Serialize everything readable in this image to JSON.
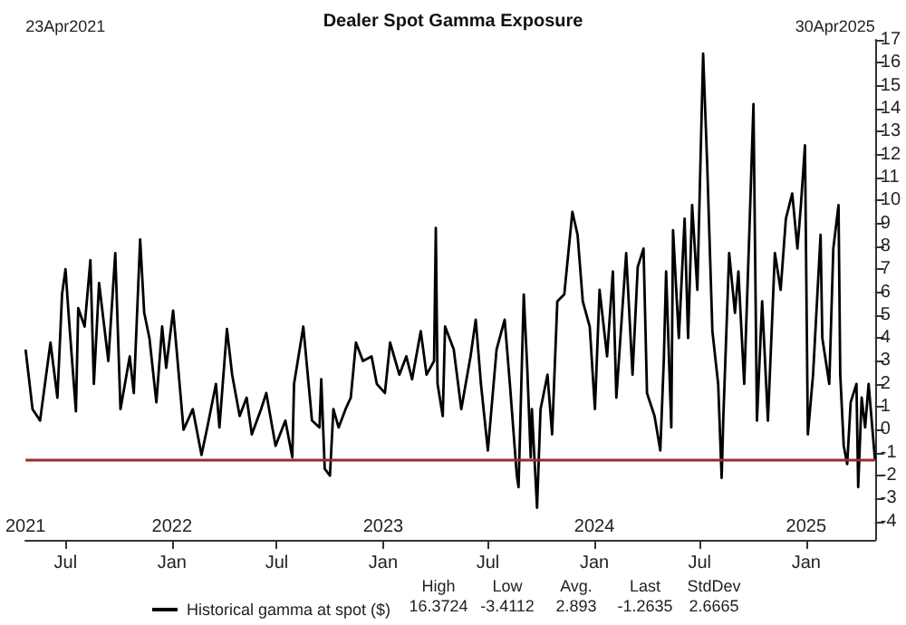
{
  "chart_data": {
    "type": "line",
    "title": "Dealer Spot Gamma Exposure",
    "x": [
      "2021-04-23",
      "2021-05-05",
      "2021-05-18",
      "2021-06-05",
      "2021-06-17",
      "2021-06-25",
      "2021-07-01",
      "2021-07-07",
      "2021-07-19",
      "2021-07-23",
      "2021-08-03",
      "2021-08-13",
      "2021-08-19",
      "2021-08-28",
      "2021-09-13",
      "2021-09-25",
      "2021-10-04",
      "2021-10-20",
      "2021-10-27",
      "2021-11-07",
      "2021-11-14",
      "2021-11-23",
      "2021-12-05",
      "2021-12-15",
      "2021-12-22",
      "2022-01-03",
      "2022-01-09",
      "2022-01-21",
      "2022-02-06",
      "2022-02-21",
      "2022-03-03",
      "2022-03-18",
      "2022-03-24",
      "2022-04-06",
      "2022-04-15",
      "2022-04-28",
      "2022-05-10",
      "2022-05-19",
      "2022-06-04",
      "2022-06-13",
      "2022-06-29",
      "2022-07-16",
      "2022-07-28",
      "2022-07-31",
      "2022-08-16",
      "2022-08-31",
      "2022-09-13",
      "2022-09-16",
      "2022-09-22",
      "2022-10-01",
      "2022-10-07",
      "2022-10-16",
      "2022-10-28",
      "2022-11-06",
      "2022-11-15",
      "2022-11-27",
      "2022-12-12",
      "2022-12-21",
      "2023-01-04",
      "2023-01-13",
      "2023-01-29",
      "2023-02-10",
      "2023-02-20",
      "2023-03-07",
      "2023-03-17",
      "2023-03-30",
      "2023-04-02",
      "2023-04-05",
      "2023-04-14",
      "2023-04-18",
      "2023-05-03",
      "2023-05-16",
      "2023-06-01",
      "2023-06-10",
      "2023-06-19",
      "2023-07-01",
      "2023-07-16",
      "2023-07-30",
      "2023-08-08",
      "2023-08-20",
      "2023-08-23",
      "2023-09-01",
      "2023-09-07",
      "2023-09-13",
      "2023-09-15",
      "2023-09-24",
      "2023-09-30",
      "2023-10-12",
      "2023-10-20",
      "2023-10-29",
      "2023-11-10",
      "2023-11-24",
      "2023-12-03",
      "2023-12-12",
      "2023-12-24",
      "2024-01-02",
      "2024-01-10",
      "2024-01-23",
      "2024-02-02",
      "2024-02-08",
      "2024-02-25",
      "2024-03-07",
      "2024-03-16",
      "2024-03-26",
      "2024-04-01",
      "2024-04-14",
      "2024-04-24",
      "2024-04-30",
      "2024-05-04",
      "2024-05-13",
      "2024-05-16",
      "2024-05-26",
      "2024-06-05",
      "2024-06-11",
      "2024-06-18",
      "2024-06-27",
      "2024-07-07",
      "2024-07-14",
      "2024-07-23",
      "2024-08-02",
      "2024-08-08",
      "2024-08-11",
      "2024-08-21",
      "2024-08-31",
      "2024-09-06",
      "2024-09-16",
      "2024-09-25",
      "2024-10-02",
      "2024-10-08",
      "2024-10-17",
      "2024-10-27",
      "2024-11-08",
      "2024-11-18",
      "2024-11-27",
      "2024-12-08",
      "2024-12-17",
      "2024-12-23",
      "2024-12-30",
      "2025-01-04",
      "2025-01-13",
      "2025-01-26",
      "2025-01-29",
      "2025-02-10",
      "2025-02-17",
      "2025-02-26",
      "2025-03-01",
      "2025-03-07",
      "2025-03-13",
      "2025-03-19",
      "2025-03-29",
      "2025-04-01",
      "2025-04-07",
      "2025-04-13",
      "2025-04-19",
      "2025-04-30"
    ],
    "series": [
      {
        "name": "Historical gamma at spot ($)",
        "color": "#000000",
        "values": [
          3.5,
          0.9,
          0.4,
          3.8,
          1.4,
          5.9,
          7.0,
          4.8,
          0.8,
          5.3,
          4.5,
          7.4,
          2.0,
          6.4,
          3.0,
          7.7,
          0.9,
          3.2,
          1.6,
          8.3,
          5.1,
          4.0,
          1.2,
          4.5,
          2.7,
          5.2,
          3.5,
          0.0,
          0.9,
          -1.1,
          0.1,
          2.0,
          0.1,
          4.4,
          2.4,
          0.6,
          1.4,
          -0.2,
          0.9,
          1.6,
          -0.7,
          0.4,
          -1.2,
          2.0,
          4.5,
          0.4,
          0.1,
          2.2,
          -1.7,
          -2.0,
          0.9,
          0.1,
          0.9,
          1.4,
          3.8,
          3.0,
          3.2,
          2.0,
          1.6,
          3.8,
          2.4,
          3.2,
          2.2,
          4.3,
          2.4,
          3.0,
          8.8,
          2.0,
          0.6,
          4.5,
          3.5,
          0.9,
          3.2,
          4.8,
          2.0,
          -0.9,
          3.5,
          4.8,
          2.0,
          -2.0,
          -2.5,
          5.9,
          2.7,
          -1.2,
          0.9,
          -3.4,
          0.9,
          2.4,
          -0.2,
          5.6,
          5.9,
          9.5,
          8.5,
          5.6,
          4.5,
          0.9,
          6.1,
          3.2,
          6.9,
          1.4,
          7.7,
          2.4,
          7.1,
          7.9,
          1.6,
          0.6,
          -0.9,
          3.0,
          6.9,
          0.1,
          8.7,
          4.0,
          9.2,
          4.0,
          9.8,
          6.1,
          16.4,
          11.6,
          4.3,
          2.0,
          -2.1,
          0.6,
          7.7,
          5.1,
          6.9,
          2.0,
          8.7,
          14.2,
          0.4,
          5.6,
          0.4,
          7.7,
          6.1,
          9.2,
          10.3,
          7.9,
          9.8,
          12.4,
          -0.2,
          2.4,
          8.5,
          4.0,
          2.0,
          7.9,
          9.8,
          2.4,
          -0.7,
          -1.5,
          1.2,
          2.0,
          -2.5,
          1.4,
          0.1,
          2.0,
          -1.3
        ]
      }
    ],
    "xlim": [
      "2021-04-23",
      "2025-04-30"
    ],
    "xticks": [
      {
        "value": "2021-07-01",
        "label": "Jul"
      },
      {
        "value": "2022-01-01",
        "label": "Jan"
      },
      {
        "value": "2022-07-01",
        "label": "Jul"
      },
      {
        "value": "2023-01-01",
        "label": "Jan"
      },
      {
        "value": "2023-07-01",
        "label": "Jul"
      },
      {
        "value": "2024-01-01",
        "label": "Jan"
      },
      {
        "value": "2024-07-01",
        "label": "Jul"
      },
      {
        "value": "2025-01-01",
        "label": "Jan"
      }
    ],
    "x2lim": [
      "2021-04-23",
      "2025-04-30"
    ],
    "x2ticks": [
      {
        "value": "2021-04-23",
        "label": "2021"
      },
      {
        "value": "2022-01-01",
        "label": "2022"
      },
      {
        "value": "2023-01-01",
        "label": "2023"
      },
      {
        "value": "2024-01-01",
        "label": "2024"
      },
      {
        "value": "2025-01-01",
        "label": "2025"
      }
    ],
    "ylim": [
      -4.8,
      17
    ],
    "yticks": [
      -4,
      -3,
      -2,
      -1,
      0,
      1,
      2,
      3,
      4,
      5,
      6,
      7,
      8,
      9,
      10,
      11,
      12,
      13,
      14,
      15,
      16,
      17
    ],
    "ref_lines": [
      {
        "axis": "y",
        "value": -1.3,
        "color": "#9c2b2b"
      }
    ],
    "annotations": [
      "23Apr2021",
      "30Apr2025",
      "High\n16.3724",
      "Low\n-3.4112",
      "Avg.\n2.893",
      "Last\n-1.2635",
      "StdDev\n2.6665"
    ],
    "grid": false,
    "legend": "bottom",
    "marker": "none",
    "line_style": "solid"
  }
}
